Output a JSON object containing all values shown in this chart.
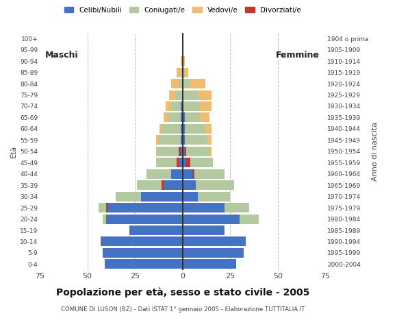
{
  "age_groups": [
    "0-4",
    "5-9",
    "10-14",
    "15-19",
    "20-24",
    "25-29",
    "30-34",
    "35-39",
    "40-44",
    "45-49",
    "50-54",
    "55-59",
    "60-64",
    "65-69",
    "70-74",
    "75-79",
    "80-84",
    "85-89",
    "90-94",
    "95-99",
    "100+"
  ],
  "birth_years": [
    "2000-2004",
    "1995-1999",
    "1990-1994",
    "1985-1989",
    "1980-1984",
    "1975-1979",
    "1970-1974",
    "1965-1969",
    "1960-1964",
    "1955-1959",
    "1950-1954",
    "1945-1949",
    "1940-1944",
    "1935-1939",
    "1930-1934",
    "1925-1929",
    "1920-1924",
    "1915-1919",
    "1910-1914",
    "1905-1909",
    "1904 o prima"
  ],
  "males": {
    "celibi": [
      41,
      42,
      43,
      28,
      40,
      39,
      22,
      10,
      6,
      2,
      1,
      1,
      1,
      1,
      1,
      0,
      0,
      0,
      0,
      0,
      0
    ],
    "coniugati": [
      0,
      0,
      0,
      0,
      2,
      5,
      13,
      14,
      13,
      12,
      13,
      12,
      10,
      7,
      5,
      4,
      2,
      1,
      0,
      0,
      0
    ],
    "vedovi": [
      0,
      0,
      0,
      0,
      0,
      0,
      0,
      0,
      0,
      0,
      0,
      1,
      1,
      2,
      3,
      3,
      4,
      2,
      1,
      0,
      0
    ],
    "divorziati": [
      0,
      0,
      0,
      0,
      0,
      1,
      0,
      1,
      0,
      1,
      1,
      0,
      0,
      0,
      0,
      0,
      0,
      0,
      0,
      0,
      0
    ]
  },
  "females": {
    "nubili": [
      28,
      32,
      33,
      22,
      30,
      22,
      8,
      7,
      5,
      2,
      1,
      1,
      1,
      1,
      0,
      0,
      0,
      0,
      0,
      0,
      0
    ],
    "coniugate": [
      0,
      0,
      0,
      0,
      10,
      13,
      17,
      20,
      17,
      14,
      13,
      12,
      11,
      8,
      9,
      8,
      4,
      1,
      0,
      0,
      0
    ],
    "vedove": [
      0,
      0,
      0,
      0,
      0,
      0,
      0,
      0,
      0,
      0,
      1,
      2,
      3,
      5,
      6,
      7,
      8,
      2,
      1,
      0,
      0
    ],
    "divorziate": [
      0,
      0,
      0,
      0,
      0,
      0,
      0,
      0,
      1,
      2,
      1,
      0,
      0,
      0,
      0,
      0,
      0,
      0,
      0,
      0,
      0
    ]
  },
  "colors": {
    "celibi": "#4472C4",
    "coniugati": "#b5c9a0",
    "vedovi": "#f0bc6e",
    "divorziati": "#c0392b"
  },
  "title": "Popolazione per età, sesso e stato civile - 2005",
  "subtitle": "COMUNE DI LUSON (BZ) - Dati ISTAT 1° gennaio 2005 - Elaborazione TUTTITALIA.IT",
  "xlabel_left": "Maschi",
  "xlabel_right": "Femmine",
  "ylabel_left": "Età",
  "ylabel_right": "Anno di nascita",
  "xlim": 75,
  "legend_labels": [
    "Celibi/Nubili",
    "Coniugati/e",
    "Vedovi/e",
    "Divorziati/e"
  ],
  "background_color": "#ffffff",
  "grid_color": "#bbbbbb",
  "spine_color": "#cccccc"
}
